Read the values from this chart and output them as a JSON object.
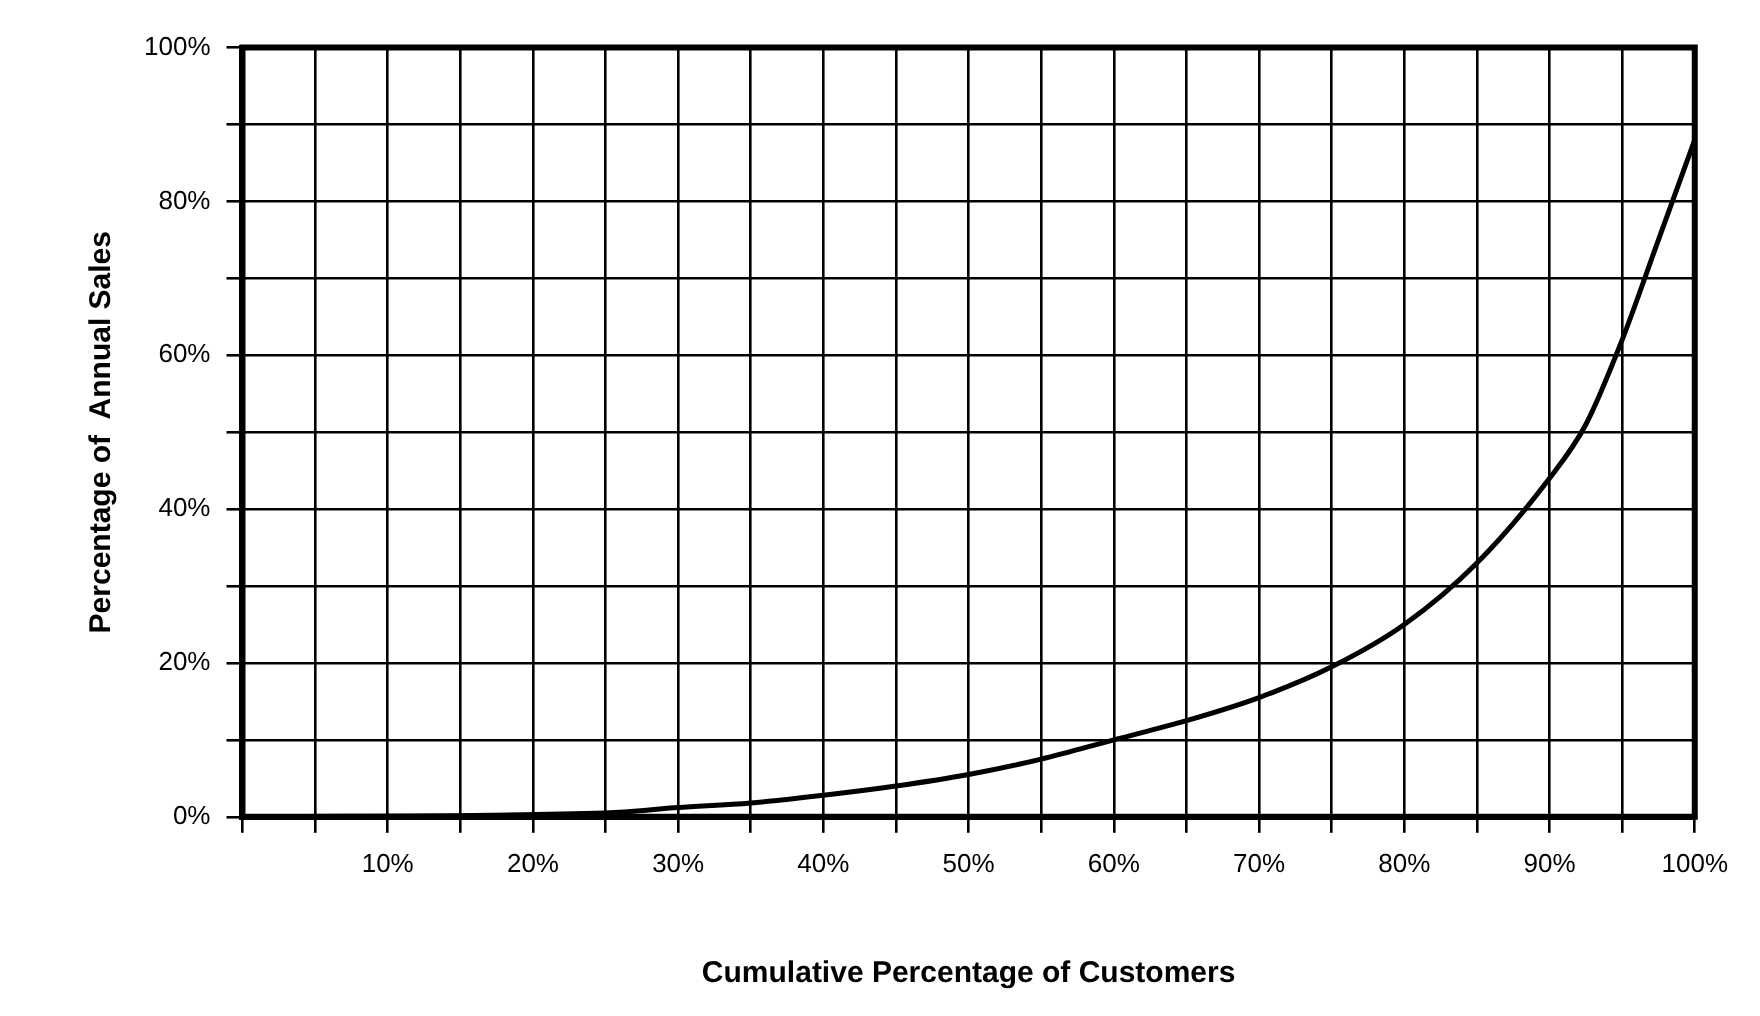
{
  "chart_data": {
    "type": "line",
    "xlabel": "Cumulative Percentage of Customers",
    "ylabel": "Percentage of  Annual Sales",
    "x": [
      0,
      25,
      30,
      35,
      40,
      45,
      50,
      55,
      60,
      65,
      70,
      75,
      80,
      85,
      90,
      92.5,
      95,
      97.5,
      100
    ],
    "series": [
      {
        "color": "#000000",
        "values": [
          0,
          0.5,
          1.2,
          1.8,
          2.8,
          4,
          5.5,
          7.5,
          10,
          12.5,
          15.5,
          19.5,
          25,
          33,
          44,
          51,
          62,
          75,
          88
        ]
      }
    ],
    "xlim": [
      0,
      100
    ],
    "ylim": [
      0,
      100
    ],
    "xticks": [
      {
        "value": 0,
        "label": null
      },
      {
        "value": 5,
        "label": null
      },
      {
        "value": 10,
        "label": "10%"
      },
      {
        "value": 15,
        "label": null
      },
      {
        "value": 20,
        "label": "20%"
      },
      {
        "value": 25,
        "label": null
      },
      {
        "value": 30,
        "label": "30%"
      },
      {
        "value": 35,
        "label": null
      },
      {
        "value": 40,
        "label": "40%"
      },
      {
        "value": 45,
        "label": null
      },
      {
        "value": 50,
        "label": "50%"
      },
      {
        "value": 55,
        "label": null
      },
      {
        "value": 60,
        "label": "60%"
      },
      {
        "value": 65,
        "label": null
      },
      {
        "value": 70,
        "label": "70%"
      },
      {
        "value": 75,
        "label": null
      },
      {
        "value": 80,
        "label": "80%"
      },
      {
        "value": 85,
        "label": null
      },
      {
        "value": 90,
        "label": "90%"
      },
      {
        "value": 95,
        "label": null
      },
      {
        "value": 100,
        "label": "100%"
      }
    ],
    "yticks": [
      {
        "value": 0,
        "label": "0%"
      },
      {
        "value": 10,
        "label": null
      },
      {
        "value": 20,
        "label": "20%"
      },
      {
        "value": 30,
        "label": null
      },
      {
        "value": 40,
        "label": "40%"
      },
      {
        "value": 50,
        "label": null
      },
      {
        "value": 60,
        "label": "60%"
      },
      {
        "value": 70,
        "label": null
      },
      {
        "value": 80,
        "label": "80%"
      },
      {
        "value": 90,
        "label": null
      },
      {
        "value": 100,
        "label": "100%"
      }
    ],
    "grid": true,
    "legend": false,
    "marker": "none",
    "line_style": "solid"
  }
}
